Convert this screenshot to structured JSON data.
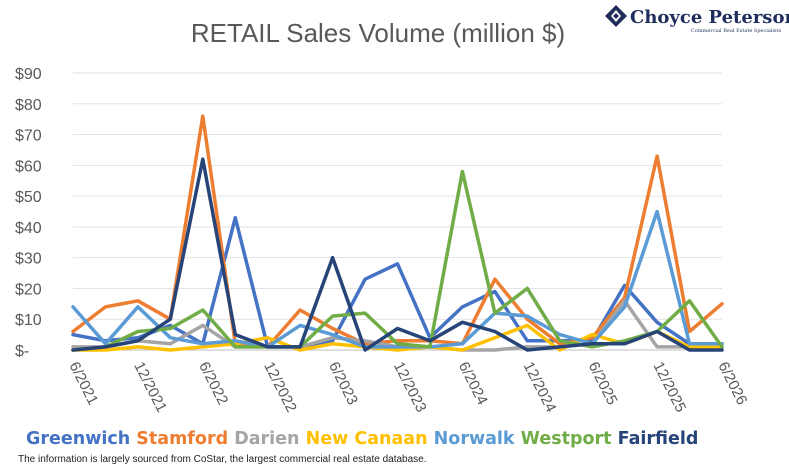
{
  "logo": {
    "name": "Choyce Peterson",
    "tagline": "Commercial Real Estate Specialists"
  },
  "footnote": "The information is largely sourced from CoStar, the largest commercial real estate database.",
  "chart_data": {
    "type": "line",
    "title": "RETAIL Sales Volume (million $)",
    "xlabel": "",
    "ylabel": "",
    "ylim": [
      0,
      90
    ],
    "y_ticks": [
      "$-",
      "$10",
      "$20",
      "$30",
      "$40",
      "$50",
      "$60",
      "$70",
      "$80",
      "$90"
    ],
    "y_tick_values": [
      0,
      10,
      20,
      30,
      40,
      50,
      60,
      70,
      80,
      90
    ],
    "x_tick_labels": [
      "6/2021",
      "12/2021",
      "6/2022",
      "12/2022",
      "6/2023",
      "12/2023",
      "6/2024",
      "12/2024",
      "6/2025",
      "12/2025",
      "6/2026"
    ],
    "x": [
      "6/2021",
      "9/2021",
      "12/2021",
      "3/2022",
      "6/2022",
      "9/2022",
      "12/2022",
      "3/2023",
      "6/2023",
      "9/2023",
      "12/2023",
      "3/2024",
      "6/2024",
      "9/2024",
      "12/2024",
      "3/2025",
      "6/2025",
      "9/2025",
      "12/2025",
      "3/2026",
      "6/2026"
    ],
    "grid": "horizontal",
    "legend_position": "bottom",
    "series": [
      {
        "name": "Greenwich",
        "color": "#4472C4",
        "values": [
          5,
          3,
          4,
          8,
          2,
          43,
          1,
          1,
          3,
          23,
          28,
          4,
          14,
          19,
          3,
          3,
          3,
          21,
          9,
          2,
          2
        ]
      },
      {
        "name": "Stamford",
        "color": "#ED7D31",
        "values": [
          6,
          14,
          16,
          10,
          76,
          2,
          1,
          13,
          7,
          2,
          3,
          3,
          2,
          23,
          10,
          2,
          4,
          17,
          63,
          6,
          15
        ]
      },
      {
        "name": "Darien",
        "color": "#A5A5A5",
        "values": [
          1,
          1,
          3,
          2,
          8,
          1,
          1,
          1,
          4,
          3,
          1,
          1,
          0,
          0,
          1,
          1,
          2,
          16,
          1,
          1,
          1
        ]
      },
      {
        "name": "New Canaan",
        "color": "#FFC000",
        "values": [
          0,
          0,
          1,
          0,
          1,
          2,
          4,
          0,
          2,
          1,
          0,
          1,
          0,
          4,
          8,
          0,
          5,
          2,
          6,
          1,
          1
        ]
      },
      {
        "name": "Norwalk",
        "color": "#5B9BD5",
        "values": [
          14,
          2,
          14,
          4,
          2,
          3,
          1,
          8,
          5,
          1,
          1,
          1,
          2,
          12,
          11,
          5,
          2,
          14,
          45,
          2,
          2
        ]
      },
      {
        "name": "Westport",
        "color": "#70AD47",
        "values": [
          0,
          1,
          6,
          7,
          13,
          1,
          1,
          1,
          11,
          12,
          2,
          1,
          58,
          12,
          20,
          3,
          1,
          3,
          6,
          16,
          1
        ]
      },
      {
        "name": "Fairfield",
        "color": "#264478",
        "values": [
          0,
          1,
          3,
          10,
          62,
          5,
          1,
          1,
          30,
          0,
          7,
          3,
          9,
          6,
          0,
          1,
          2,
          2,
          6,
          0,
          0
        ]
      }
    ]
  }
}
